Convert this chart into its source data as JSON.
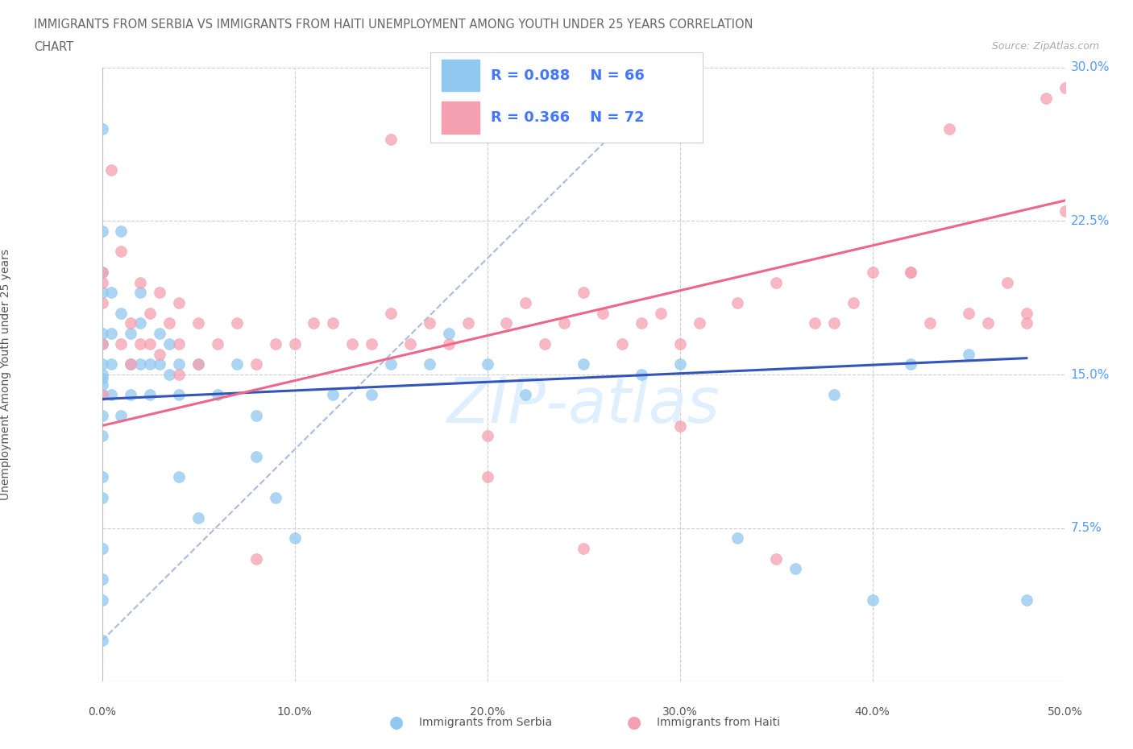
{
  "title_line1": "IMMIGRANTS FROM SERBIA VS IMMIGRANTS FROM HAITI UNEMPLOYMENT AMONG YOUTH UNDER 25 YEARS CORRELATION",
  "title_line2": "CHART",
  "source": "Source: ZipAtlas.com",
  "ylabel": "Unemployment Among Youth under 25 years",
  "xlim": [
    0.0,
    0.5
  ],
  "ylim": [
    0.0,
    0.3
  ],
  "xticks": [
    0.0,
    0.1,
    0.2,
    0.3,
    0.4,
    0.5
  ],
  "yticks": [
    0.0,
    0.075,
    0.15,
    0.225,
    0.3
  ],
  "xtick_labels": [
    "0.0%",
    "10.0%",
    "20.0%",
    "30.0%",
    "40.0%",
    "50.0%"
  ],
  "ytick_labels": [
    "",
    "7.5%",
    "15.0%",
    "22.5%",
    "30.0%"
  ],
  "serbia_color": "#90C8F0",
  "haiti_color": "#F5A0B0",
  "serbia_line_color": "#3355BB",
  "haiti_line_color": "#EE6688",
  "diag_color": "#AABBDD",
  "serbia_R": 0.088,
  "serbia_N": 66,
  "haiti_R": 0.366,
  "haiti_N": 72,
  "serbia_scatter_x": [
    0.0,
    0.0,
    0.0,
    0.0,
    0.0,
    0.0,
    0.0,
    0.0,
    0.0,
    0.0,
    0.0,
    0.0,
    0.0,
    0.0,
    0.0,
    0.0,
    0.0,
    0.0,
    0.0,
    0.005,
    0.005,
    0.005,
    0.005,
    0.01,
    0.01,
    0.01,
    0.015,
    0.015,
    0.015,
    0.02,
    0.02,
    0.02,
    0.025,
    0.025,
    0.03,
    0.03,
    0.035,
    0.035,
    0.04,
    0.04,
    0.04,
    0.05,
    0.05,
    0.06,
    0.07,
    0.08,
    0.08,
    0.09,
    0.1,
    0.12,
    0.14,
    0.15,
    0.17,
    0.18,
    0.2,
    0.22,
    0.25,
    0.28,
    0.3,
    0.33,
    0.36,
    0.38,
    0.4,
    0.42,
    0.45,
    0.48
  ],
  "serbia_scatter_y": [
    0.27,
    0.22,
    0.2,
    0.19,
    0.17,
    0.165,
    0.155,
    0.15,
    0.148,
    0.145,
    0.14,
    0.13,
    0.12,
    0.1,
    0.09,
    0.065,
    0.05,
    0.04,
    0.02,
    0.19,
    0.17,
    0.155,
    0.14,
    0.22,
    0.18,
    0.13,
    0.17,
    0.155,
    0.14,
    0.19,
    0.175,
    0.155,
    0.155,
    0.14,
    0.17,
    0.155,
    0.165,
    0.15,
    0.155,
    0.14,
    0.1,
    0.155,
    0.08,
    0.14,
    0.155,
    0.13,
    0.11,
    0.09,
    0.07,
    0.14,
    0.14,
    0.155,
    0.155,
    0.17,
    0.155,
    0.14,
    0.155,
    0.15,
    0.155,
    0.07,
    0.055,
    0.14,
    0.04,
    0.155,
    0.16,
    0.04
  ],
  "haiti_scatter_x": [
    0.0,
    0.0,
    0.0,
    0.0,
    0.0,
    0.005,
    0.01,
    0.01,
    0.015,
    0.015,
    0.02,
    0.02,
    0.025,
    0.025,
    0.03,
    0.03,
    0.035,
    0.04,
    0.04,
    0.04,
    0.05,
    0.05,
    0.06,
    0.07,
    0.08,
    0.09,
    0.1,
    0.11,
    0.12,
    0.13,
    0.14,
    0.15,
    0.16,
    0.17,
    0.18,
    0.19,
    0.2,
    0.21,
    0.22,
    0.23,
    0.24,
    0.25,
    0.26,
    0.27,
    0.28,
    0.29,
    0.3,
    0.31,
    0.33,
    0.35,
    0.37,
    0.39,
    0.4,
    0.42,
    0.43,
    0.44,
    0.46,
    0.47,
    0.48,
    0.49,
    0.5,
    0.2,
    0.25,
    0.3,
    0.35,
    0.38,
    0.42,
    0.45,
    0.48,
    0.5,
    0.15,
    0.08
  ],
  "haiti_scatter_y": [
    0.2,
    0.195,
    0.185,
    0.165,
    0.14,
    0.25,
    0.21,
    0.165,
    0.175,
    0.155,
    0.195,
    0.165,
    0.18,
    0.165,
    0.19,
    0.16,
    0.175,
    0.185,
    0.165,
    0.15,
    0.175,
    0.155,
    0.165,
    0.175,
    0.155,
    0.165,
    0.165,
    0.175,
    0.175,
    0.165,
    0.165,
    0.18,
    0.165,
    0.175,
    0.165,
    0.175,
    0.12,
    0.175,
    0.185,
    0.165,
    0.175,
    0.19,
    0.18,
    0.165,
    0.175,
    0.18,
    0.165,
    0.175,
    0.185,
    0.195,
    0.175,
    0.185,
    0.2,
    0.2,
    0.175,
    0.27,
    0.175,
    0.195,
    0.18,
    0.285,
    0.23,
    0.1,
    0.065,
    0.125,
    0.06,
    0.175,
    0.2,
    0.18,
    0.175,
    0.29,
    0.265,
    0.06
  ],
  "watermark_text": "ZIP­atlas",
  "background_color": "#ffffff",
  "grid_color": "#cccccc"
}
